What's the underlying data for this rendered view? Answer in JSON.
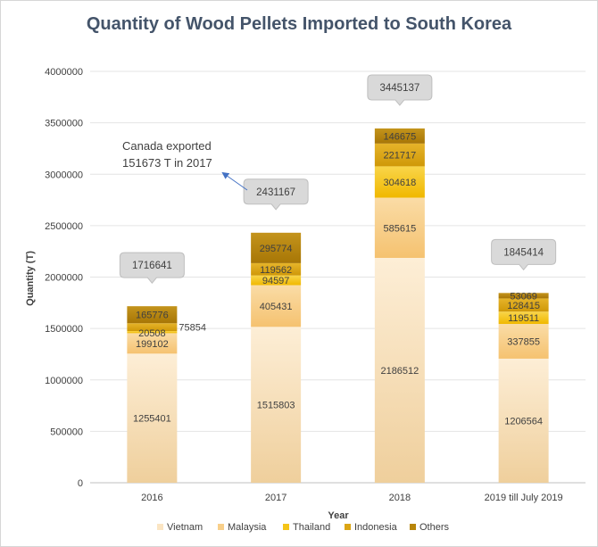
{
  "chart_data": {
    "type": "bar",
    "stacked": true,
    "title": "Quantity of Wood Pellets Imported to South Korea",
    "xlabel": "Year",
    "ylabel": "Quantity (T)",
    "ylim": [
      0,
      4000000
    ],
    "yticks": [
      "0",
      "500000",
      "1000000",
      "1500000",
      "2000000",
      "2500000",
      "3000000",
      "3500000",
      "4000000"
    ],
    "categories": [
      "2016",
      "2017",
      "2018",
      "2019 till July 2019"
    ],
    "series": [
      {
        "name": "Vietnam",
        "values": [
          1255401,
          1515803,
          2186512,
          1206564
        ],
        "labels": [
          "1255401",
          "1515803",
          "2186512",
          "1206564"
        ],
        "color": "#fbe5c3"
      },
      {
        "name": "Malaysia",
        "values": [
          199102,
          405431,
          585615,
          337855
        ],
        "labels": [
          "199102",
          "405431",
          "585615",
          "337855"
        ],
        "color": "#f8cf8a"
      },
      {
        "name": "Thailand",
        "values": [
          20508,
          94597,
          304618,
          119511
        ],
        "labels": [
          "20508",
          "94597",
          "304618",
          "119511"
        ],
        "color": "#f5c518"
      },
      {
        "name": "Indonesia",
        "values": [
          75854,
          119562,
          221717,
          128415
        ],
        "labels": [
          "75854",
          "119562",
          "221717",
          "128415"
        ],
        "color": "#dba514"
      },
      {
        "name": "Others",
        "values": [
          165776,
          295774,
          146675,
          53069
        ],
        "labels": [
          "165776",
          "295774",
          "146675",
          "53069"
        ],
        "color": "#b8860b"
      }
    ],
    "totals": [
      "1716641",
      "2431167",
      "3445137",
      "1845414"
    ],
    "annotation": {
      "line1": "Canada exported",
      "line2": "151673 T in 2017"
    },
    "grid": true,
    "legend": "bottom"
  }
}
